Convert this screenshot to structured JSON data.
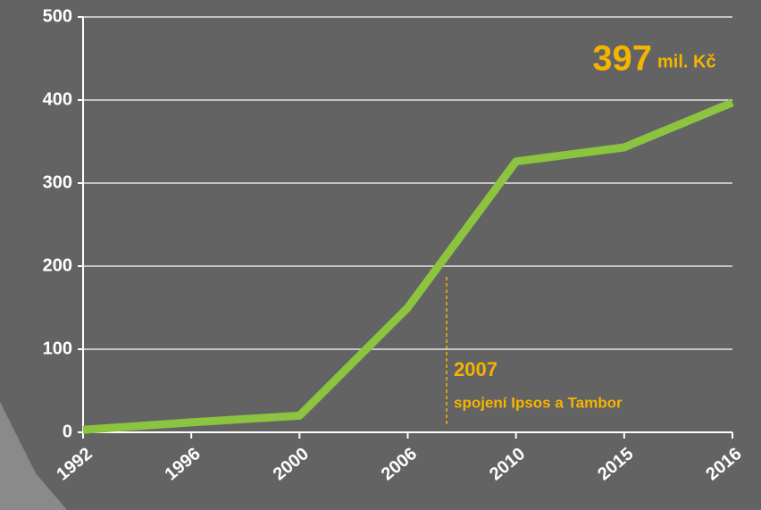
{
  "chart_data": {
    "type": "line",
    "categories": [
      "1992",
      "1996",
      "2000",
      "2006",
      "2010",
      "2015",
      "2016"
    ],
    "series": [
      {
        "name": "Ipsos",
        "color": "#8cc43f",
        "values": [
          3,
          12,
          20,
          150,
          326,
          343,
          397
        ]
      }
    ],
    "ylim": [
      0,
      500
    ],
    "yticks": [
      0,
      100,
      200,
      300,
      400,
      500
    ],
    "grid": true,
    "unit_label": "mil. Kč",
    "annotation": {
      "year": "2007",
      "text": "spojení Ipsos a Tambor"
    }
  }
}
